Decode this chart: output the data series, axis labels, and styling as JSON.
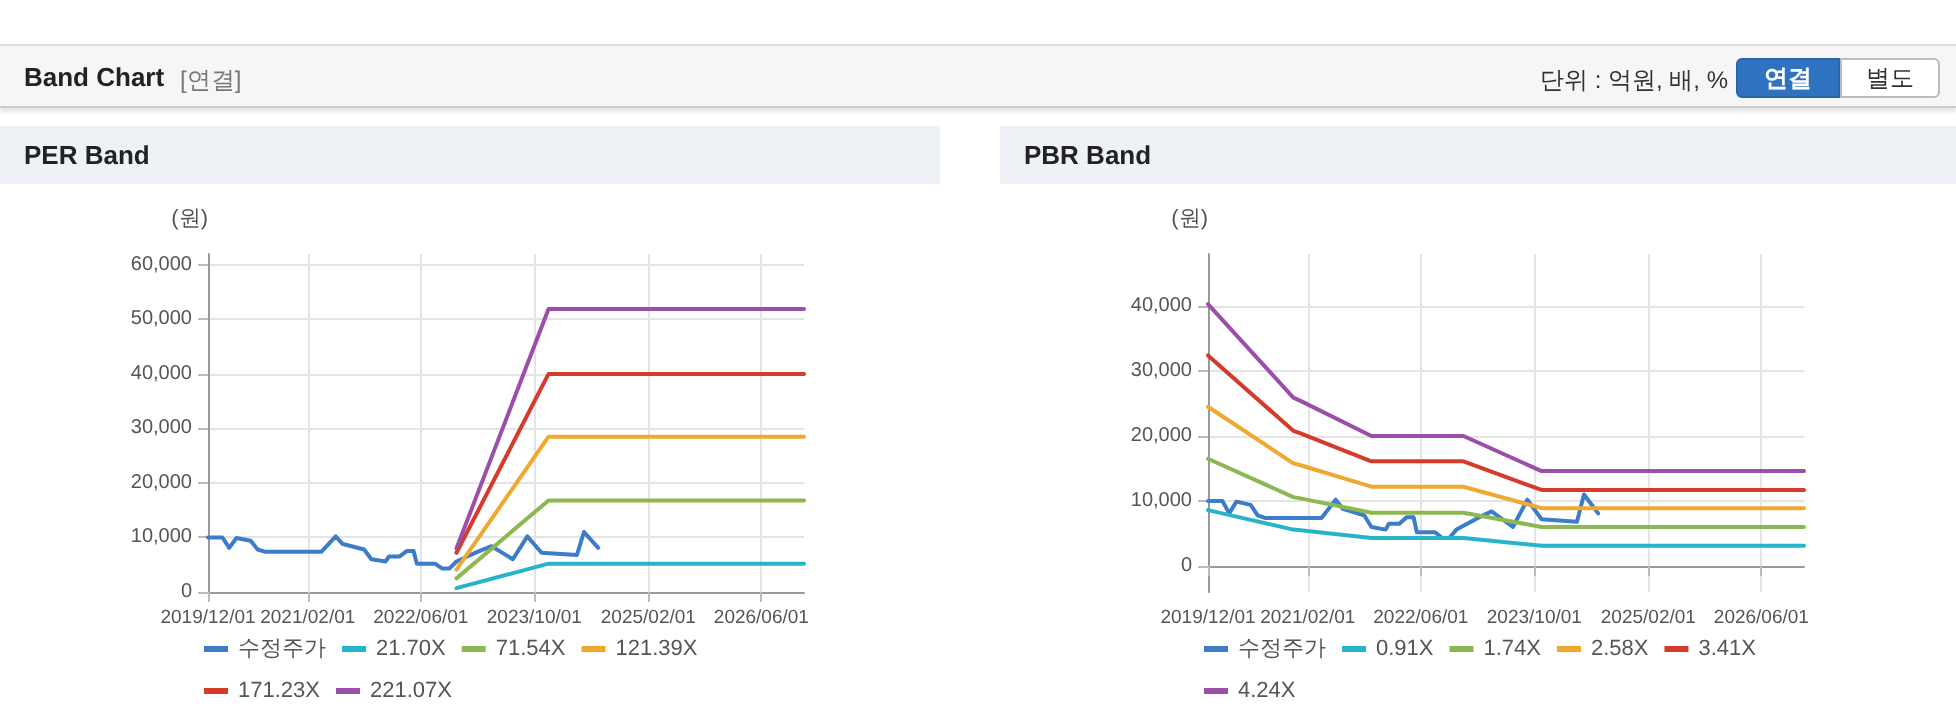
{
  "chart_data": [
    {
      "type": "other",
      "title": "Band Chart",
      "subtitle": "[연결]",
      "annotations": [
        "단위 : 억원, 배, %",
        "연결",
        "별도"
      ]
    },
    {
      "type": "line",
      "title": "PER Band",
      "ylabel": "(원)",
      "xlim": [
        "2019-12-01",
        "2026-12-01"
      ],
      "ylim": [
        0,
        62000
      ],
      "xticks": [
        {
          "value": "2019-12-01",
          "label": "2019/12/01"
        },
        {
          "value": "2021-02-01",
          "label": "2021/02/01"
        },
        {
          "value": "2022-06-01",
          "label": "2022/06/01"
        },
        {
          "value": "2023-10-01",
          "label": "2023/10/01"
        },
        {
          "value": "2025-02-01",
          "label": "2025/02/01"
        },
        {
          "value": "2026-06-01",
          "label": "2026/06/01"
        }
      ],
      "yticks": [
        0,
        {
          "value": 10000,
          "label": "10,000"
        },
        {
          "value": 20000,
          "label": "20,000"
        },
        {
          "value": 30000,
          "label": "30,000"
        },
        {
          "value": 40000,
          "label": "40,000"
        },
        {
          "value": 50000,
          "label": "50,000"
        },
        {
          "value": 60000,
          "label": "60,000"
        }
      ],
      "grid": true,
      "legend": "bottom",
      "marker": "none",
      "line_style": "solid",
      "series": [
        {
          "name": "수정주가",
          "color": "#3d7cc9",
          "x": [
            "2019-12-01",
            "2020-02-01",
            "2020-03-01",
            "2020-04-01",
            "2020-06-01",
            "2020-07-01",
            "2020-08-01",
            "2021-04-01",
            "2021-06-01",
            "2021-07-01",
            "2021-10-01",
            "2021-11-01",
            "2022-01-01",
            "2022-01-15",
            "2022-03-01",
            "2022-04-01",
            "2022-05-01",
            "2022-05-15",
            "2022-08-01",
            "2022-09-01",
            "2022-10-01",
            "2022-11-01",
            "2023-02-01",
            "2023-04-01",
            "2023-07-01",
            "2023-09-01",
            "2023-11-01",
            "2024-04-01",
            "2024-05-01",
            "2024-07-01"
          ],
          "values": [
            10000,
            10000,
            8100,
            9900,
            9400,
            7800,
            7400,
            7400,
            10200,
            8800,
            7800,
            6000,
            5600,
            6500,
            6500,
            7500,
            7500,
            5200,
            5200,
            4300,
            4300,
            5600,
            7400,
            8400,
            6000,
            10200,
            7200,
            6800,
            11000,
            8100
          ]
        },
        {
          "name": "21.70X",
          "color": "#26b5c8",
          "x": [
            "2022-11-01",
            "2023-12-01",
            "2026-12-01"
          ],
          "values": [
            700,
            5200,
            5200
          ]
        },
        {
          "name": "71.54X",
          "color": "#8db750",
          "x": [
            "2022-11-01",
            "2023-12-01",
            "2026-12-01"
          ],
          "values": [
            2500,
            16800,
            16800
          ]
        },
        {
          "name": "121.39X",
          "color": "#f0a830",
          "x": [
            "2022-11-01",
            "2023-12-01",
            "2026-12-01"
          ],
          "values": [
            4100,
            28500,
            28500
          ]
        },
        {
          "name": "171.23X",
          "color": "#d63a2a",
          "x": [
            "2022-11-01",
            "2023-12-01",
            "2026-12-01"
          ],
          "values": [
            7200,
            40000,
            40000
          ]
        },
        {
          "name": "221.07X",
          "color": "#9b4fa8",
          "x": [
            "2022-11-01",
            "2023-12-01",
            "2026-12-01"
          ],
          "values": [
            8000,
            51900,
            51900
          ]
        }
      ]
    },
    {
      "type": "line",
      "title": "PBR Band",
      "ylabel": "(원)",
      "xlim": [
        "2019-12-01",
        "2026-12-01"
      ],
      "ylim": [
        -4000,
        48000
      ],
      "xticks": [
        {
          "value": "2019-12-01",
          "label": "2019/12/01"
        },
        {
          "value": "2021-02-01",
          "label": "2021/02/01"
        },
        {
          "value": "2022-06-01",
          "label": "2022/06/01"
        },
        {
          "value": "2023-10-01",
          "label": "2023/10/01"
        },
        {
          "value": "2025-02-01",
          "label": "2025/02/01"
        },
        {
          "value": "2026-06-01",
          "label": "2026/06/01"
        }
      ],
      "yticks": [
        0,
        {
          "value": 10000,
          "label": "10,000"
        },
        {
          "value": 20000,
          "label": "20,000"
        },
        {
          "value": 30000,
          "label": "30,000"
        },
        {
          "value": 40000,
          "label": "40,000"
        }
      ],
      "grid": true,
      "legend": "bottom",
      "marker": "none",
      "line_style": "solid",
      "series": [
        {
          "name": "수정주가",
          "color": "#3d7cc9",
          "x": [
            "2019-12-01",
            "2020-02-01",
            "2020-03-01",
            "2020-04-01",
            "2020-06-01",
            "2020-07-01",
            "2020-08-01",
            "2021-04-01",
            "2021-06-01",
            "2021-07-01",
            "2021-10-01",
            "2021-11-01",
            "2022-01-01",
            "2022-01-15",
            "2022-03-01",
            "2022-04-01",
            "2022-05-01",
            "2022-05-15",
            "2022-08-01",
            "2022-09-01",
            "2022-10-01",
            "2022-11-01",
            "2023-02-01",
            "2023-04-01",
            "2023-07-01",
            "2023-09-01",
            "2023-11-01",
            "2024-04-01",
            "2024-05-01",
            "2024-07-01"
          ],
          "values": [
            10000,
            10000,
            8100,
            9900,
            9400,
            7800,
            7400,
            7400,
            10200,
            8800,
            7800,
            6000,
            5600,
            6500,
            6500,
            7500,
            7500,
            5200,
            5200,
            4300,
            4300,
            5600,
            7400,
            8400,
            6000,
            10200,
            7200,
            6800,
            11000,
            8100
          ]
        },
        {
          "name": "0.91X",
          "color": "#26b5c8",
          "x": [
            "2019-12-01",
            "2020-12-01",
            "2021-01-01",
            "2021-11-01",
            "2022-12-01",
            "2023-11-01",
            "2026-12-01"
          ],
          "values": [
            8600,
            5600,
            5500,
            4300,
            4300,
            3100,
            3100
          ]
        },
        {
          "name": "1.74X",
          "color": "#8db750",
          "x": [
            "2019-12-01",
            "2020-12-01",
            "2021-01-01",
            "2021-11-01",
            "2022-12-01",
            "2023-11-01",
            "2026-12-01"
          ],
          "values": [
            16500,
            10600,
            10400,
            8200,
            8200,
            6000,
            6000
          ]
        },
        {
          "name": "2.58X",
          "color": "#f0a830",
          "x": [
            "2019-12-01",
            "2020-12-01",
            "2021-01-01",
            "2021-11-01",
            "2022-12-01",
            "2023-11-01",
            "2026-12-01"
          ],
          "values": [
            24500,
            15800,
            15500,
            12200,
            12200,
            8900,
            8900
          ]
        },
        {
          "name": "3.41X",
          "color": "#d63a2a",
          "x": [
            "2019-12-01",
            "2020-12-01",
            "2021-01-01",
            "2021-11-01",
            "2022-12-01",
            "2023-11-01",
            "2026-12-01"
          ],
          "values": [
            32400,
            20800,
            20400,
            16100,
            16100,
            11700,
            11700
          ]
        },
        {
          "name": "4.24X",
          "color": "#9b4fa8",
          "x": [
            "2019-12-01",
            "2020-12-01",
            "2021-01-01",
            "2021-11-01",
            "2022-12-01",
            "2023-11-01",
            "2026-12-01"
          ],
          "values": [
            40300,
            25900,
            25400,
            20000,
            20000,
            14600,
            14600
          ]
        }
      ]
    }
  ]
}
